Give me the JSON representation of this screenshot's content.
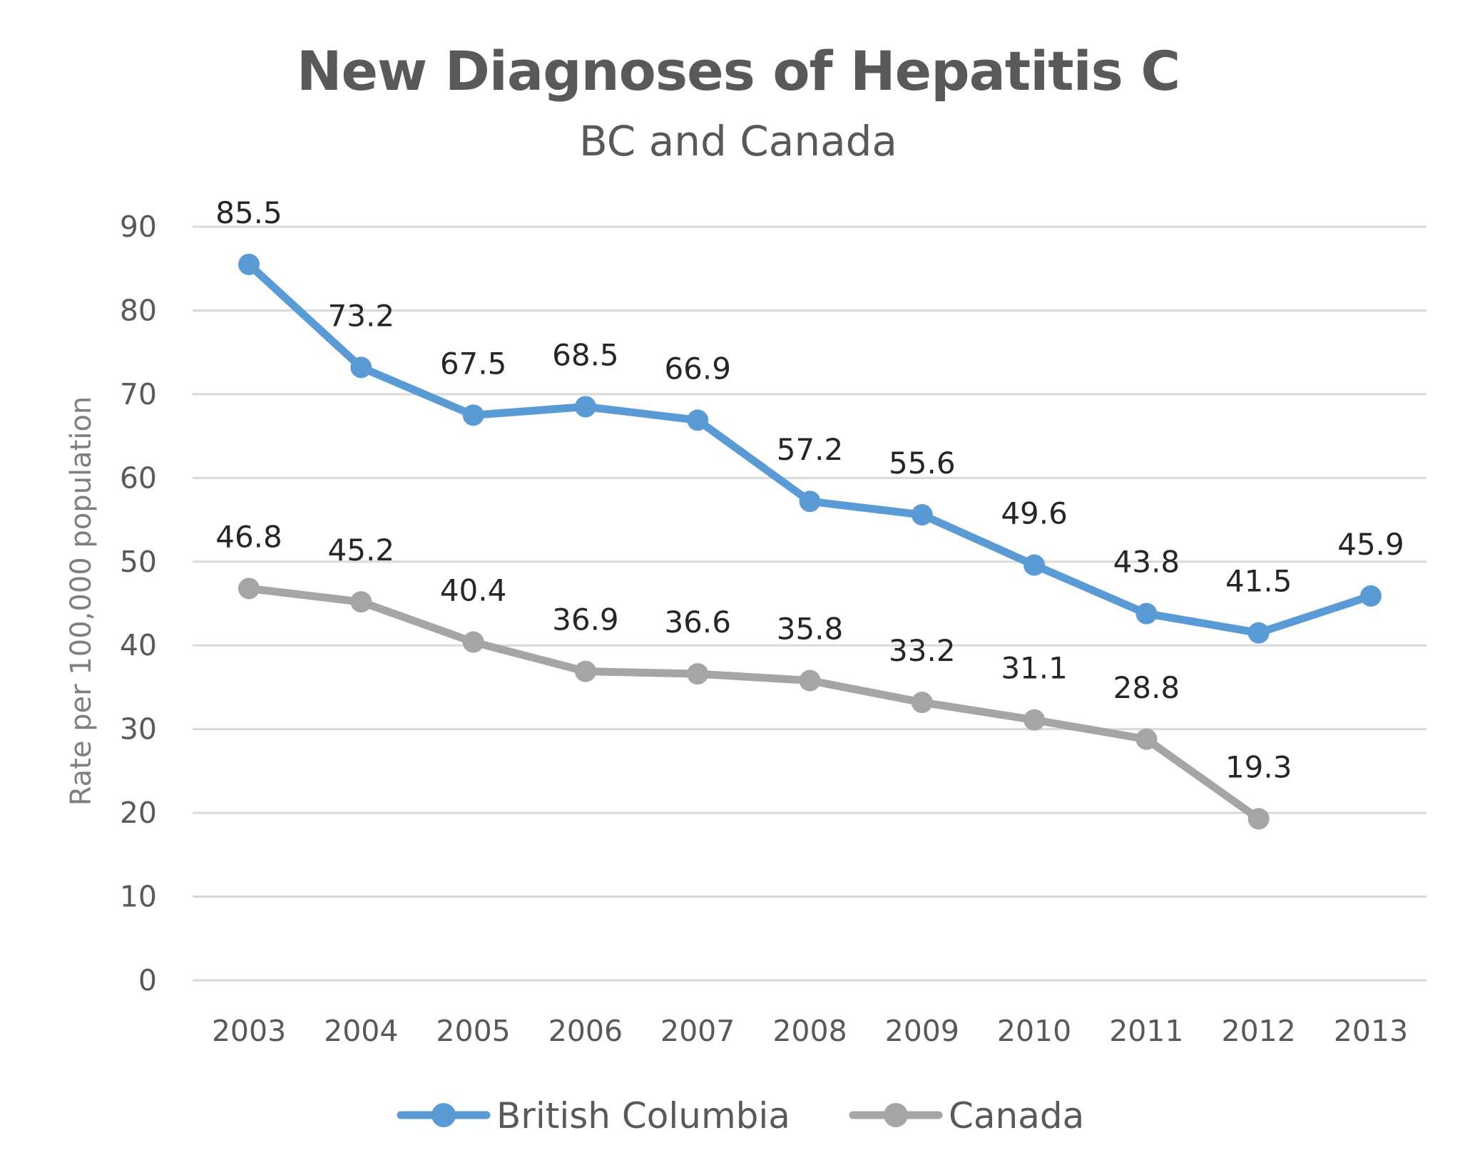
{
  "chart_data": {
    "type": "line",
    "title": "New Diagnoses of Hepatitis C",
    "subtitle": "BC and Canada",
    "ylabel": "Rate per 100,000 population",
    "xlabel": "",
    "ylim": [
      0,
      90
    ],
    "yticks": [
      "0",
      "10",
      "20",
      "30",
      "40",
      "50",
      "60",
      "70",
      "80",
      "90"
    ],
    "grid": true,
    "legend_position": "bottom",
    "categories": [
      "2003",
      "2004",
      "2005",
      "2006",
      "2007",
      "2008",
      "2009",
      "2010",
      "2011",
      "2012",
      "2013"
    ],
    "series": [
      {
        "name": "British Columbia",
        "color": "#5b9bd5",
        "values": [
          85.5,
          73.2,
          67.5,
          68.5,
          66.9,
          57.2,
          55.6,
          49.6,
          43.8,
          41.5,
          45.9
        ],
        "labels": [
          "85.5",
          "73.2",
          "67.5",
          "68.5",
          "66.9",
          "57.2",
          "55.6",
          "49.6",
          "43.8",
          "41.5",
          "45.9"
        ]
      },
      {
        "name": "Canada",
        "color": "#a5a5a5",
        "values": [
          46.8,
          45.2,
          40.4,
          36.9,
          36.6,
          35.8,
          33.2,
          31.1,
          28.8,
          19.3,
          null
        ],
        "labels": [
          "46.8",
          "45.2",
          "40.4",
          "36.9",
          "36.6",
          "35.8",
          "33.2",
          "31.1",
          "28.8",
          "19.3",
          null
        ]
      }
    ]
  }
}
